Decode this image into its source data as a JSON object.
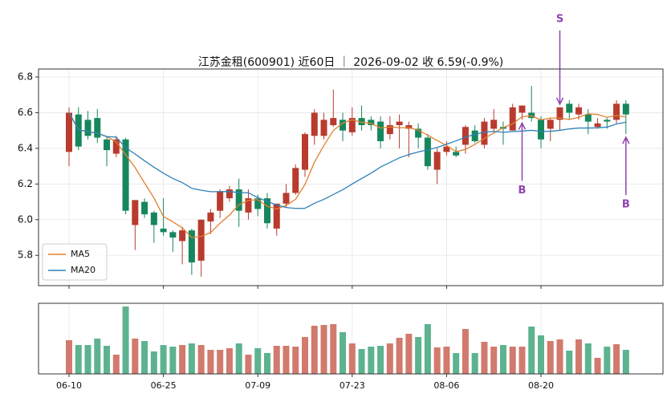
{
  "chart_data": {
    "type": "candlestick",
    "title": "江苏金租(600901) 近60日 ｜ 2026-09-02 收 6.59(-0.9%)",
    "categories": [
      "06-10",
      null,
      null,
      null,
      null,
      null,
      null,
      null,
      null,
      null,
      "06-25",
      null,
      null,
      null,
      null,
      null,
      null,
      null,
      null,
      null,
      "07-09",
      null,
      null,
      null,
      null,
      null,
      null,
      null,
      null,
      null,
      "07-23",
      null,
      null,
      null,
      null,
      null,
      null,
      null,
      null,
      null,
      "08-06",
      null,
      null,
      null,
      null,
      null,
      null,
      null,
      null,
      null,
      "08-20",
      null,
      null,
      null,
      null,
      null,
      null,
      null,
      null,
      null
    ],
    "open": [
      6.38,
      6.59,
      6.56,
      6.57,
      6.45,
      6.37,
      6.45,
      5.97,
      6.1,
      6.04,
      5.95,
      5.93,
      5.88,
      5.94,
      5.77,
      5.99,
      6.05,
      6.12,
      6.17,
      6.04,
      6.12,
      6.12,
      5.95,
      6.09,
      6.15,
      6.28,
      6.47,
      6.47,
      6.53,
      6.56,
      6.49,
      6.57,
      6.56,
      6.55,
      6.48,
      6.53,
      6.51,
      6.51,
      6.46,
      6.28,
      6.38,
      6.38,
      6.42,
      6.5,
      6.42,
      6.51,
      6.52,
      6.5,
      6.6,
      6.6,
      6.56,
      6.51,
      6.56,
      6.65,
      6.59,
      6.59,
      6.52,
      6.56,
      6.56,
      6.65
    ],
    "high": [
      6.63,
      6.63,
      6.61,
      6.62,
      6.47,
      6.47,
      6.46,
      6.11,
      6.12,
      6.05,
      6.12,
      5.94,
      5.96,
      5.95,
      6.0,
      6.06,
      6.17,
      6.19,
      6.23,
      6.17,
      6.14,
      6.15,
      6.09,
      6.2,
      6.31,
      6.49,
      6.62,
      6.6,
      6.73,
      6.6,
      6.63,
      6.64,
      6.58,
      6.58,
      6.58,
      6.59,
      6.55,
      6.54,
      6.48,
      6.4,
      6.44,
      6.41,
      6.53,
      6.53,
      6.57,
      6.62,
      6.55,
      6.65,
      6.64,
      6.75,
      6.58,
      6.57,
      6.63,
      6.67,
      6.65,
      6.62,
      6.57,
      6.57,
      6.67,
      6.67
    ],
    "low": [
      6.3,
      6.39,
      6.45,
      6.43,
      6.3,
      6.35,
      6.03,
      5.83,
      6.01,
      5.87,
      5.91,
      5.82,
      5.75,
      5.69,
      5.68,
      5.92,
      6.01,
      6.1,
      5.96,
      6.0,
      6.02,
      5.95,
      5.91,
      6.07,
      6.14,
      6.24,
      6.42,
      6.45,
      6.52,
      6.44,
      6.47,
      6.5,
      6.5,
      6.4,
      6.45,
      6.4,
      6.35,
      6.4,
      6.28,
      6.2,
      6.36,
      6.35,
      6.37,
      6.43,
      6.4,
      6.49,
      6.42,
      6.5,
      6.56,
      6.55,
      6.4,
      6.44,
      6.5,
      6.56,
      6.56,
      6.48,
      6.51,
      6.51,
      6.54,
      6.48
    ],
    "close": [
      6.6,
      6.41,
      6.47,
      6.46,
      6.39,
      6.45,
      6.05,
      6.11,
      6.03,
      5.97,
      5.93,
      5.9,
      5.94,
      5.76,
      6.0,
      6.04,
      6.16,
      6.17,
      6.05,
      6.12,
      6.06,
      5.98,
      6.09,
      6.15,
      6.29,
      6.48,
      6.6,
      6.56,
      6.57,
      6.5,
      6.57,
      6.53,
      6.53,
      6.44,
      6.53,
      6.55,
      6.53,
      6.46,
      6.3,
      6.38,
      6.41,
      6.36,
      6.52,
      6.44,
      6.55,
      6.56,
      6.51,
      6.63,
      6.64,
      6.57,
      6.45,
      6.56,
      6.63,
      6.6,
      6.63,
      6.55,
      6.54,
      6.55,
      6.65,
      6.59
    ],
    "up_color": "#b83b2e",
    "down_color": "#16875c",
    "ylim": [
      5.63,
      6.845
    ],
    "yticks": [
      5.8,
      {
        "value": 6,
        "label": "6.0"
      },
      6.2,
      6.4,
      6.6,
      6.8
    ],
    "grid": true,
    "legend": "lower left",
    "series": [
      {
        "name": "MA5",
        "color": "#e0812f",
        "values": [
          6.6,
          6.505,
          6.493,
          6.485,
          6.466,
          6.436,
          6.364,
          6.292,
          6.206,
          6.122,
          6.018,
          5.988,
          5.954,
          5.9,
          5.906,
          5.928,
          5.98,
          6.026,
          6.084,
          6.108,
          6.112,
          6.076,
          6.06,
          6.08,
          6.114,
          6.198,
          6.322,
          6.416,
          6.5,
          6.542,
          6.56,
          6.546,
          6.54,
          6.514,
          6.52,
          6.516,
          6.516,
          6.502,
          6.474,
          6.444,
          6.416,
          6.382,
          6.394,
          6.422,
          6.456,
          6.486,
          6.516,
          6.538,
          6.578,
          6.582,
          6.56,
          6.57,
          6.57,
          6.562,
          6.574,
          6.594,
          6.59,
          6.574,
          6.584,
          6.576
        ]
      },
      {
        "name": "MA20",
        "color": "#2f80b7",
        "values": [
          6.6,
          6.505,
          6.493,
          6.485,
          6.466,
          6.463,
          6.404,
          6.368,
          6.33,
          6.294,
          6.261,
          6.231,
          6.208,
          6.176,
          6.165,
          6.157,
          6.157,
          6.158,
          6.152,
          6.151,
          6.124,
          6.102,
          6.083,
          6.068,
          6.063,
          6.064,
          6.092,
          6.114,
          6.141,
          6.168,
          6.2,
          6.231,
          6.261,
          6.295,
          6.321,
          6.347,
          6.365,
          6.38,
          6.392,
          6.405,
          6.423,
          6.442,
          6.463,
          6.478,
          6.491,
          6.495,
          6.49,
          6.494,
          6.497,
          6.501,
          6.495,
          6.496,
          6.501,
          6.509,
          6.514,
          6.514,
          6.515,
          6.519,
          6.537,
          6.547
        ]
      }
    ],
    "volume": {
      "ylim": [
        0,
        88
      ],
      "up_color": "#d17a6d",
      "down_color": "#5db38f",
      "values": [
        42,
        36,
        36,
        44,
        35,
        24,
        84,
        44,
        41,
        28,
        36,
        34,
        36,
        38,
        36,
        30,
        30,
        32,
        38,
        24,
        32,
        26,
        35,
        35,
        34,
        46,
        60,
        61,
        62,
        52,
        38,
        31,
        34,
        35,
        38,
        45,
        50,
        46,
        62,
        33,
        34,
        26,
        56,
        26,
        40,
        34,
        36,
        34,
        34,
        59,
        48,
        41,
        43,
        29,
        43,
        38,
        20,
        34,
        37,
        30
      ]
    },
    "annotations": [
      {
        "text": "S",
        "index": 52
      },
      {
        "text": "B",
        "index": 48
      },
      {
        "text": "B",
        "index": 59
      }
    ],
    "annotation_color": "#8e44ad"
  }
}
